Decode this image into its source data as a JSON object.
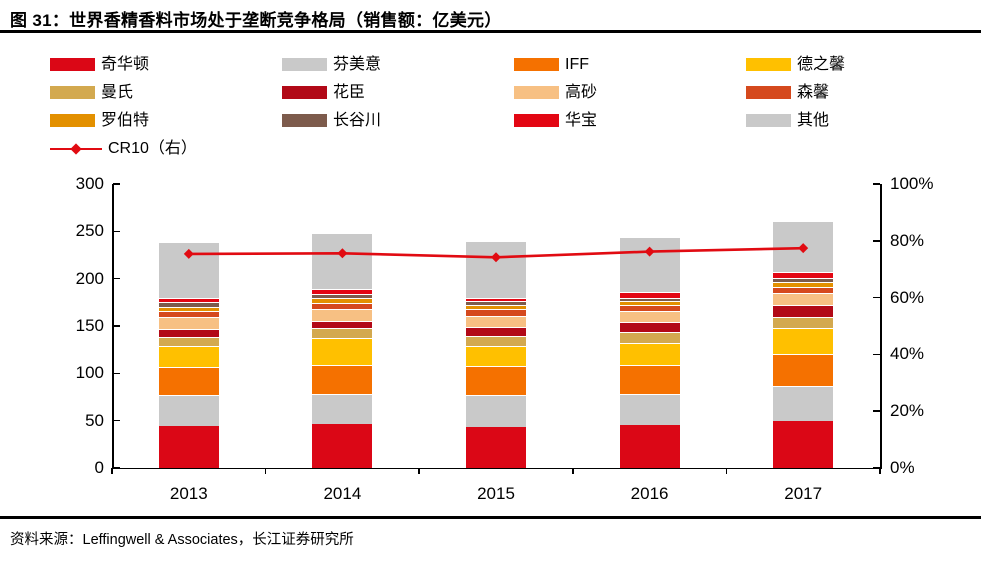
{
  "title": "图 31：世界香精香料市场处于垄断竞争格局（销售额：亿美元）",
  "source_note": "资料来源：Leffingwell & Associates，长江证券研究所",
  "chart_data": {
    "type": "bar",
    "subtype": "stacked-bars-with-line",
    "title": "世界香精香料市场处于垄断竞争格局（销售额：亿美元）",
    "unit": "亿美元",
    "legend_position": "top",
    "grid": false,
    "categories": [
      "2013",
      "2014",
      "2015",
      "2016",
      "2017"
    ],
    "series": [
      {
        "name": "奇华顿",
        "color": "#DB0716",
        "values": [
          44.5,
          46.5,
          43.5,
          46,
          50
        ]
      },
      {
        "name": "芬美意",
        "color": "#C9C9C9",
        "values": [
          33,
          32,
          34,
          32.5,
          36.5
        ]
      },
      {
        "name": "IFF",
        "color": "#F57100",
        "values": [
          29.5,
          30.5,
          30,
          30,
          33.5
        ]
      },
      {
        "name": "德之馨",
        "color": "#FFC000",
        "values": [
          22,
          28,
          21,
          24,
          27.5
        ]
      },
      {
        "name": "曼氏",
        "color": "#D3A94F",
        "values": [
          9.5,
          10.5,
          10.5,
          11.5,
          12.5
        ]
      },
      {
        "name": "花臣",
        "color": "#B20917",
        "values": [
          8,
          8,
          9.5,
          10.5,
          12.5
        ]
      },
      {
        "name": "高砂",
        "color": "#F7C083",
        "values": [
          13,
          12,
          12.5,
          11.5,
          12
        ]
      },
      {
        "name": "森馨",
        "color": "#D5491D",
        "values": [
          6,
          7,
          7,
          6,
          7
        ]
      },
      {
        "name": "罗伯特",
        "color": "#E39000",
        "values": [
          5,
          5,
          4,
          4,
          5.5
        ]
      },
      {
        "name": "长谷川",
        "color": "#7D5B4C",
        "values": [
          4.5,
          4.5,
          4,
          4,
          4
        ]
      },
      {
        "name": "华宝",
        "color": "#E30613",
        "values": [
          5,
          5,
          3.5,
          5.5,
          6
        ]
      },
      {
        "name": "其他",
        "color": "#C9C9C9",
        "values": [
          58.5,
          59.5,
          60.5,
          58.5,
          54
        ]
      }
    ],
    "bar_totals": [
      238.5,
      248.5,
      240,
      244,
      261
    ],
    "line_series": {
      "name": "CR10（右）",
      "color": "#E10B12",
      "axis": "right",
      "values_pct": [
        75.4,
        75.6,
        74.2,
        76.2,
        77.4
      ]
    },
    "left_axis": {
      "min": 0,
      "max": 300,
      "step": 50,
      "tick_labels": [
        "0",
        "50",
        "100",
        "150",
        "200",
        "250",
        "300"
      ]
    },
    "right_axis": {
      "min": 0,
      "max": 100,
      "step": 20,
      "tick_labels": [
        "0%",
        "20%",
        "40%",
        "60%",
        "80%",
        "100%"
      ]
    }
  }
}
